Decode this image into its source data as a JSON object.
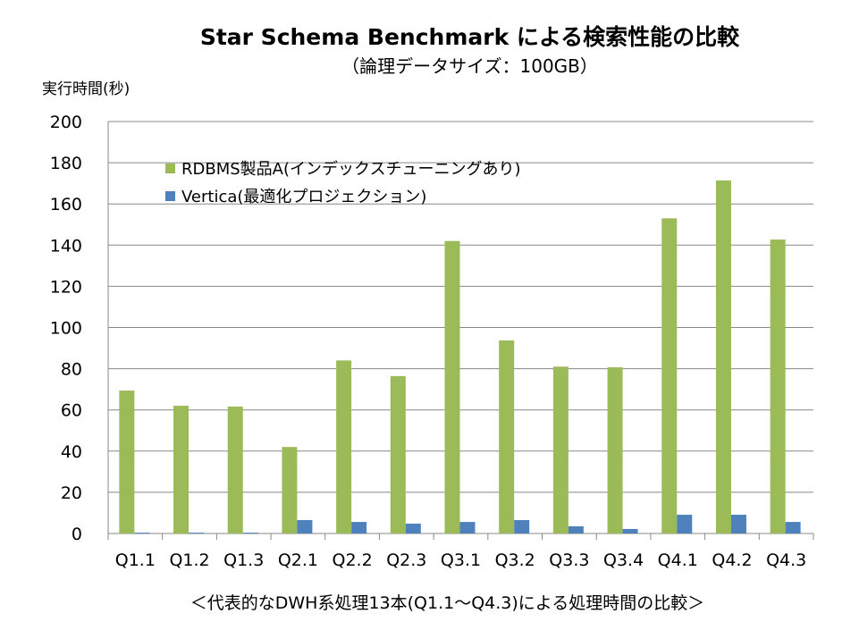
{
  "chart_data": {
    "type": "bar",
    "title": "Star Schema Benchmark による検索性能の比較",
    "subtitle": "（論理データサイズ：100GB）",
    "ylabel": "実行時間(秒)",
    "xlabel": "＜代表的なDWH系処理13本(Q1.1～Q4.3)による処理時間の比較＞",
    "ylim": [
      0,
      200
    ],
    "yticks": [
      0,
      20,
      40,
      60,
      80,
      100,
      120,
      140,
      160,
      180,
      200
    ],
    "grid": true,
    "legend_position": "top-left",
    "categories": [
      "Q1.1",
      "Q1.2",
      "Q1.3",
      "Q2.1",
      "Q2.2",
      "Q2.3",
      "Q3.1",
      "Q3.2",
      "Q3.3",
      "Q3.4",
      "Q4.1",
      "Q4.2",
      "Q4.3"
    ],
    "series": [
      {
        "name": "RDBMS製品A(インデックスチューニングあり)",
        "color": "#9BBB59",
        "values": [
          69.4,
          62,
          61.6,
          42,
          84,
          76.4,
          142,
          93.7,
          81,
          80.7,
          153,
          171.4,
          142.7
        ]
      },
      {
        "name": "Vertica(最適化プロジェクション)",
        "color": "#4F81BD",
        "values": [
          0.4,
          0.4,
          0.4,
          6.5,
          5.6,
          4.8,
          5.6,
          6.5,
          3.5,
          2.2,
          9.1,
          9.1,
          5.6
        ]
      }
    ]
  }
}
